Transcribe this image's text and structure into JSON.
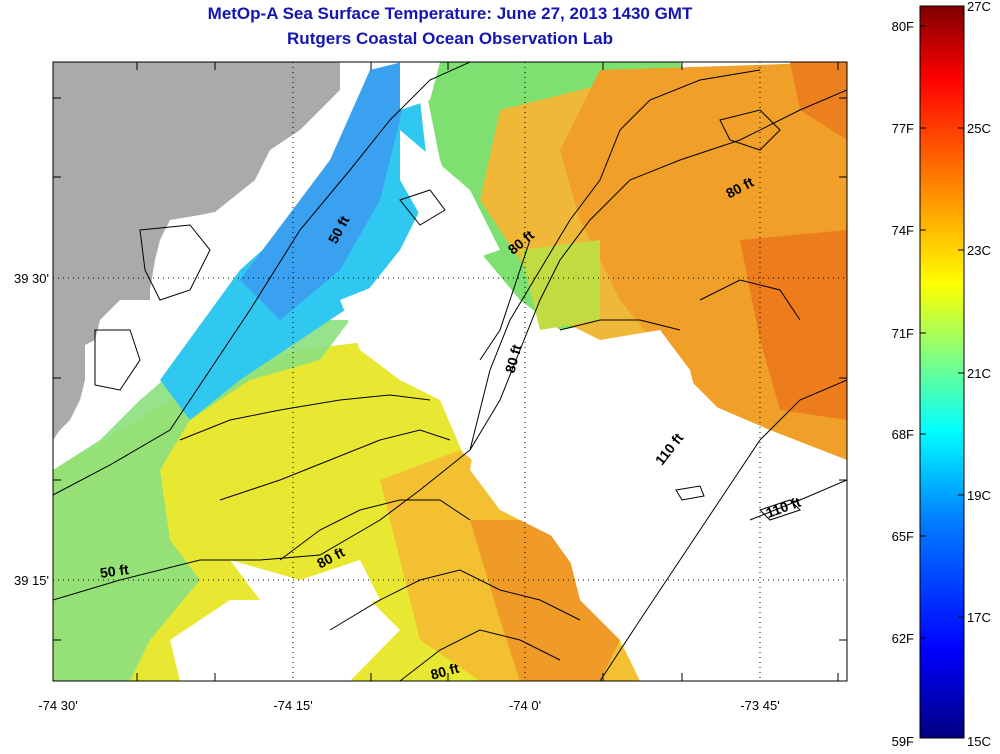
{
  "title": {
    "line1": "MetOp-A Sea Surface Temperature:  June 27, 2013 1430 GMT",
    "line2": "Rutgers Coastal Ocean Observation Lab"
  },
  "map": {
    "x_ticks": [
      "-74 30'",
      "-74 15'",
      "-74 0'",
      "-73 45'"
    ],
    "y_ticks": [
      "39 30'",
      "39 15'"
    ],
    "contour_labels": [
      "50 ft",
      "50 ft",
      "80 ft",
      "80 ft",
      "80 ft",
      "80 ft",
      "80 ft",
      "110 ft",
      "110 ft"
    ]
  },
  "colorbar": {
    "fahrenheit_labels": [
      "80F",
      "77F",
      "74F",
      "71F",
      "68F",
      "65F",
      "62F",
      "59F"
    ],
    "celsius_labels": [
      "27C",
      "25C",
      "23C",
      "21C",
      "19C",
      "17C",
      "15C"
    ],
    "colors": [
      "#000080",
      "#0000ff",
      "#0080ff",
      "#00ffff",
      "#80ff80",
      "#ffff00",
      "#ff8000",
      "#ff0000",
      "#800000"
    ]
  },
  "colors": {
    "land": "#aaaaaa",
    "title": "#1515b0",
    "ocean_cool": "#2ec8ee",
    "ocean_mid": "#e8e832",
    "ocean_warm": "#f0a028"
  }
}
